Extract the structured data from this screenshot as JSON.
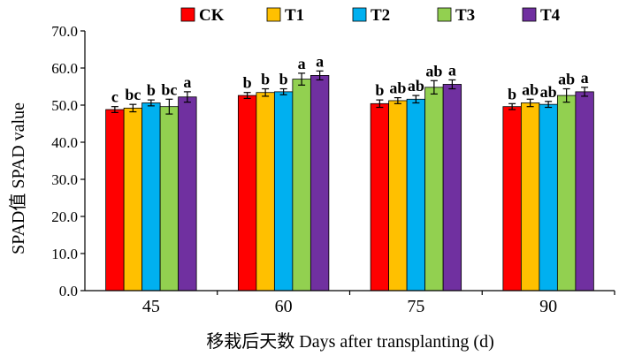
{
  "chart_data": {
    "type": "bar",
    "xlabel": "移栽后天数 Days after transplanting (d)",
    "ylabel": "SPAD值 SPAD value",
    "ylim": [
      0,
      70
    ],
    "yticks": [
      "0.0",
      "10.0",
      "20.0",
      "30.0",
      "40.0",
      "50.0",
      "60.0",
      "70.0"
    ],
    "categories": [
      "45",
      "60",
      "75",
      "90"
    ],
    "legend_position": "top",
    "error_bars": true,
    "series": [
      {
        "name": "CK",
        "color": "#ff0000",
        "values": [
          48.8,
          52.6,
          50.4,
          49.6
        ],
        "errors": [
          0.8,
          0.8,
          1.0,
          0.8
        ],
        "letters": [
          "c",
          "b",
          "b",
          "b"
        ]
      },
      {
        "name": "T1",
        "color": "#ffc000",
        "values": [
          49.2,
          53.4,
          51.2,
          50.6
        ],
        "errors": [
          1.0,
          1.0,
          0.8,
          1.0
        ],
        "letters": [
          "bc",
          "b",
          "ab",
          "ab"
        ]
      },
      {
        "name": "T2",
        "color": "#00b0f0",
        "values": [
          50.6,
          53.6,
          51.6,
          50.2
        ],
        "errors": [
          0.8,
          0.8,
          1.0,
          0.8
        ],
        "letters": [
          "b",
          "b",
          "ab",
          "ab"
        ]
      },
      {
        "name": "T3",
        "color": "#92d050",
        "values": [
          49.6,
          57.0,
          54.8,
          52.6
        ],
        "errors": [
          2.0,
          1.6,
          1.8,
          1.8
        ],
        "letters": [
          "bc",
          "a",
          "ab",
          "ab"
        ]
      },
      {
        "name": "T4",
        "color": "#7030a0",
        "values": [
          52.2,
          58.0,
          55.6,
          53.6
        ],
        "errors": [
          1.4,
          1.2,
          1.2,
          1.2
        ],
        "letters": [
          "a",
          "a",
          "a",
          "a"
        ]
      }
    ]
  }
}
